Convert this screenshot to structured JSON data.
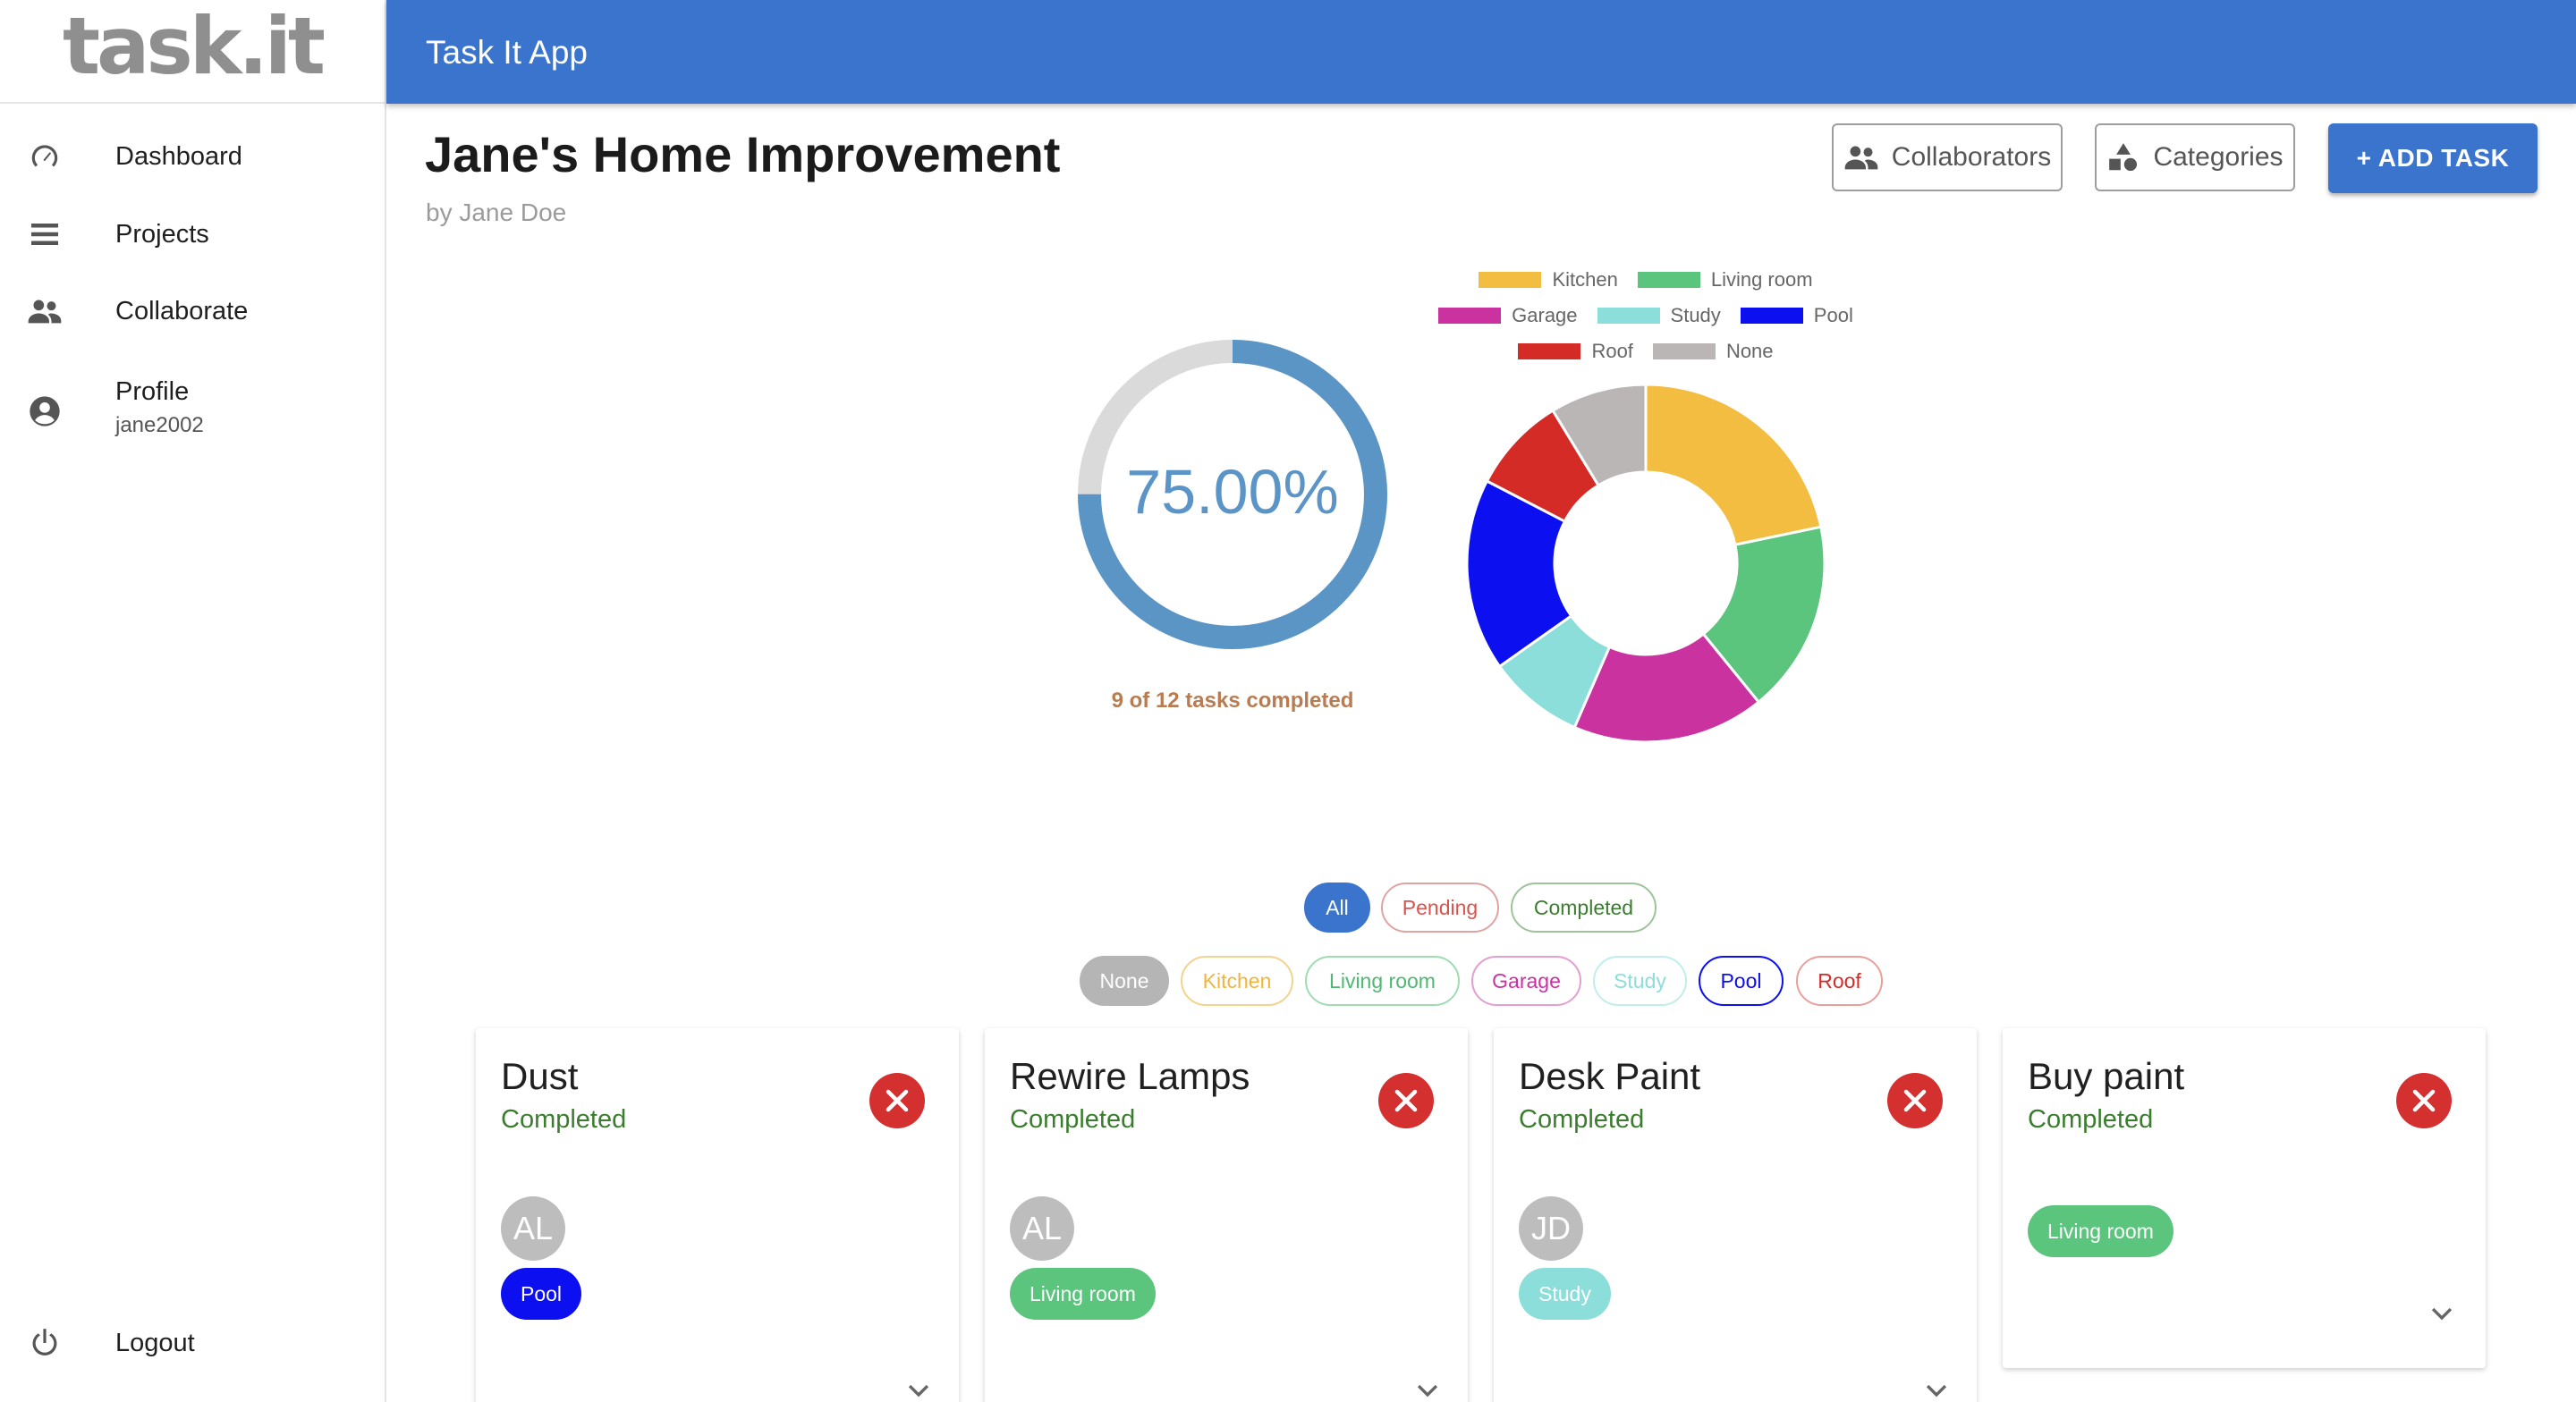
{
  "logo": {
    "text": "task.it"
  },
  "topbar": {
    "title": "Task It App"
  },
  "sidebar": {
    "items": [
      {
        "label": "Dashboard",
        "icon": "speedometer-icon"
      },
      {
        "label": "Projects",
        "icon": "list-icon"
      },
      {
        "label": "Collaborate",
        "icon": "people-icon"
      },
      {
        "label": "Profile",
        "sub": "jane2002",
        "icon": "account-circle-icon"
      },
      {
        "label": "Logout",
        "icon": "power-icon"
      }
    ]
  },
  "header": {
    "title": "Jane's Home Improvement",
    "subtitle": "by Jane Doe",
    "collaborators_label": "Collaborators",
    "categories_label": "Categories",
    "add_task_label": "+ ADD TASK"
  },
  "progress": {
    "value_label": "75.00%",
    "fraction": 0.75,
    "caption": "9 of 12 tasks completed"
  },
  "chart_data": {
    "type": "pie",
    "title": "",
    "legend_position": "top",
    "categories": [
      "Kitchen",
      "Living room",
      "Garage",
      "Study",
      "Pool",
      "Roof",
      "None"
    ],
    "values": [
      2.5,
      2,
      2,
      1,
      2,
      1,
      1
    ],
    "colors": [
      "#f3bd41",
      "#5bc47d",
      "#c9329f",
      "#8bded9",
      "#0c0ff0",
      "#d42b26",
      "#bab6b6"
    ]
  },
  "filters": {
    "status": [
      {
        "label": "All",
        "color": "#3a74cc",
        "selected": true
      },
      {
        "label": "Pending",
        "color": "#d9534f",
        "selected": false
      },
      {
        "label": "Completed",
        "color": "#3b7d2e",
        "selected": false
      }
    ],
    "categories": [
      {
        "label": "None",
        "color": "#b5b5b5",
        "selected": true
      },
      {
        "label": "Kitchen",
        "color": "#f0b53b",
        "selected": false
      },
      {
        "label": "Living room",
        "color": "#4fb872",
        "selected": false
      },
      {
        "label": "Garage",
        "color": "#c9329f",
        "selected": false
      },
      {
        "label": "Study",
        "color": "#8bded9",
        "selected": false
      },
      {
        "label": "Pool",
        "color": "#0c0ff0",
        "selected": false
      },
      {
        "label": "Roof",
        "color": "#d42b26",
        "selected": false
      }
    ]
  },
  "tasks": [
    {
      "title": "Dust",
      "status": "Completed",
      "avatar": "AL",
      "tag": "Pool",
      "tag_color": "#0c0ff0"
    },
    {
      "title": "Rewire Lamps",
      "status": "Completed",
      "avatar": "AL",
      "tag": "Living room",
      "tag_color": "#5bc47d"
    },
    {
      "title": "Desk Paint",
      "status": "Completed",
      "avatar": "JD",
      "tag": "Study",
      "tag_color": "#8bded9"
    },
    {
      "title": "Buy paint",
      "status": "Completed",
      "avatar": "",
      "tag": "Living room",
      "tag_color": "#5bc47d"
    }
  ],
  "colors": {
    "primary": "#3a74cc",
    "delete": "#d3302f",
    "status_green": "#3b7d2e"
  }
}
